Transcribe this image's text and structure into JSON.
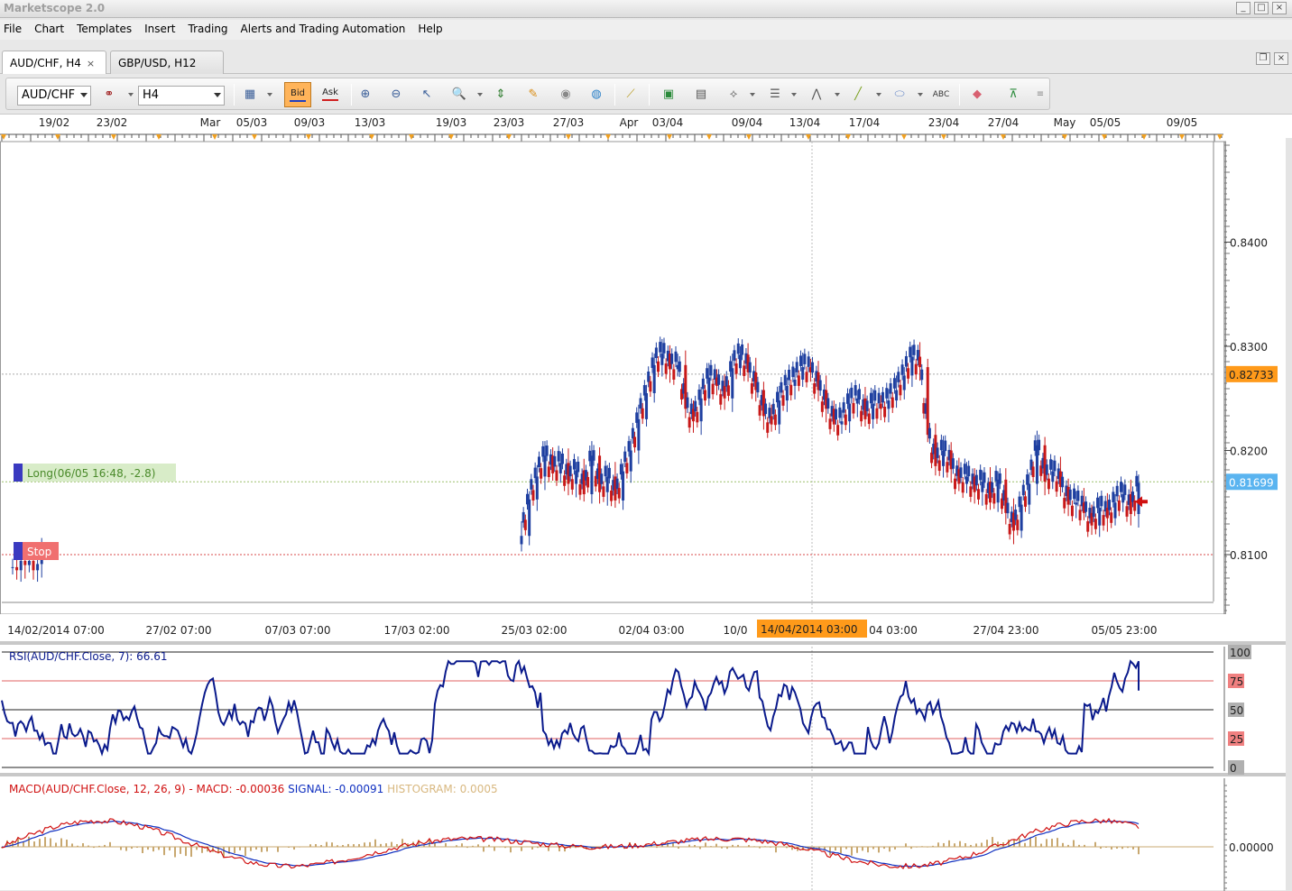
{
  "window": {
    "title": "Marketscope 2.0"
  },
  "menu": [
    "File",
    "Chart",
    "Templates",
    "Insert",
    "Trading",
    "Alerts and Trading Automation",
    "Help"
  ],
  "tabs": [
    {
      "label": "AUD/CHF, H4",
      "close": "×",
      "active": true
    },
    {
      "label": "GBP/USD, H12",
      "active": false
    }
  ],
  "toolbar": {
    "symbol": "AUD/CHF",
    "timeframe": "H4",
    "bid_label": "Bid",
    "ask_label": "Ask"
  },
  "top_dates": [
    "19/02",
    "23/02",
    "Mar",
    "05/03",
    "09/03",
    "13/03",
    "19/03",
    "23/03",
    "27/03",
    "Apr",
    "03/04",
    "09/04",
    "13/04",
    "17/04",
    "23/04",
    "27/04",
    "May",
    "05/05",
    "09/05"
  ],
  "bottom_times": [
    "14/02/2014 07:00",
    "27/02 07:00",
    "07/03 07:00",
    "17/03 02:00",
    "25/03 02:00",
    "02/04 03:00",
    "10/0",
    "04 03:00",
    "27/04 23:00",
    "05/05 23:00"
  ],
  "crosshair_time": "14/04/2014 03:00",
  "price_axis": [
    "0.8400",
    "0.8300",
    "0.8200",
    "0.8100"
  ],
  "markers": {
    "prev_close": "0.82733",
    "current": "0.81699",
    "long_label": "Long(06/05 16:48, -2.8)",
    "stop_label": "Stop"
  },
  "rsi": {
    "title": "RSI(AUD/CHF.Close, 7): 66.61",
    "levels": [
      "100",
      "75",
      "50",
      "25",
      "0"
    ]
  },
  "macd": {
    "title": "MACD(AUD/CHF.Close, 12, 26, 9) -",
    "macd": "MACD: -0.00036",
    "signal": "SIGNAL: -0.00091",
    "histogram": "HISTOGRAM: 0.0005",
    "zero": "0.00000"
  },
  "colors": {
    "bull": "#1e3fa0",
    "bear": "#c81818",
    "rsi": "#0a1a8c",
    "macd": "#d01010",
    "signal": "#1030c0",
    "hist": "#c8a870",
    "accent": "#ff9a1a"
  },
  "chart_data": {
    "type": "candlestick",
    "symbol": "AUD/CHF",
    "timeframe": "H4",
    "ylim": [
      0.8055,
      0.85
    ],
    "closes": [
      0.8088,
      0.8085,
      0.8094,
      0.809,
      0.8094,
      0.8085,
      0.8091,
      0.8105,
      0.8118,
      0.8153,
      0.8175,
      0.8195,
      0.8178,
      0.8188,
      0.8168,
      0.8181,
      0.8158,
      0.8195,
      0.816,
      0.8175,
      0.8152,
      0.818,
      0.82,
      0.823,
      0.8255,
      0.8282,
      0.8293,
      0.8278,
      0.8282,
      0.824,
      0.8228,
      0.825,
      0.827,
      0.8262,
      0.825,
      0.8279,
      0.8292,
      0.8275,
      0.8258,
      0.8233,
      0.8225,
      0.8248,
      0.8262,
      0.8268,
      0.828,
      0.8275,
      0.8258,
      0.824,
      0.8225,
      0.8228,
      0.8245,
      0.825,
      0.823,
      0.8245,
      0.824,
      0.8248,
      0.8258,
      0.8272,
      0.829,
      0.828,
      0.8215,
      0.8185,
      0.82,
      0.8182,
      0.8168,
      0.8175,
      0.816,
      0.817,
      0.815,
      0.8172,
      0.814,
      0.8123,
      0.8148,
      0.8168,
      0.8205,
      0.817,
      0.818,
      0.8165,
      0.8148,
      0.815,
      0.814,
      0.8128,
      0.8145,
      0.8135,
      0.815,
      0.8158,
      0.8139,
      0.8169
    ]
  }
}
